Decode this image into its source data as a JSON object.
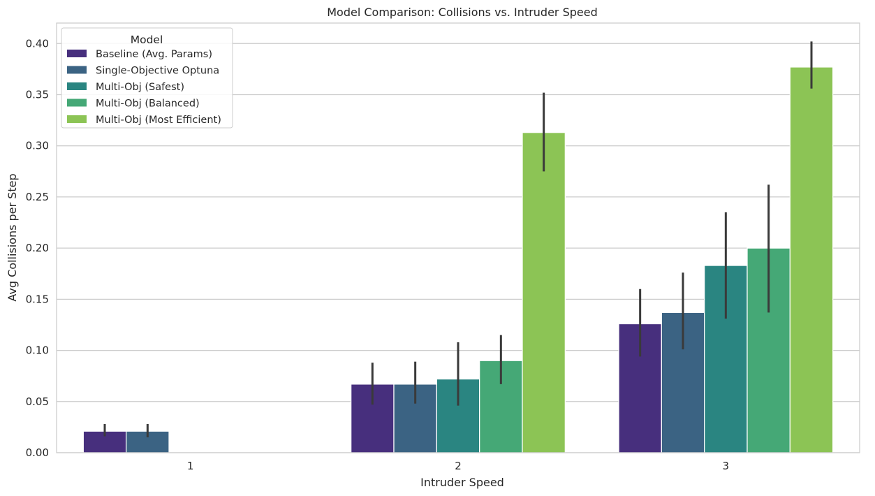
{
  "chart_data": {
    "type": "bar",
    "title": "Model Comparison: Collisions vs. Intruder Speed",
    "xlabel": "Intruder Speed",
    "ylabel": "Avg Collisions per Step",
    "categories": [
      "1",
      "2",
      "3"
    ],
    "ylim": [
      0,
      0.42
    ],
    "yticks": [
      0.0,
      0.05,
      0.1,
      0.15,
      0.2,
      0.25,
      0.3,
      0.35,
      0.4
    ],
    "ytick_labels": [
      "0.00",
      "0.05",
      "0.10",
      "0.15",
      "0.20",
      "0.25",
      "0.30",
      "0.35",
      "0.40"
    ],
    "grid": true,
    "legend": {
      "title": "Model",
      "placement": "top-left"
    },
    "series": [
      {
        "name": "Baseline (Avg. Params)",
        "color": "#472f7d",
        "values": [
          0.021,
          0.067,
          0.126
        ],
        "ci_low": [
          0.016,
          0.047,
          0.094
        ],
        "ci_high": [
          0.028,
          0.088,
          0.16
        ]
      },
      {
        "name": "Single-Objective Optuna",
        "color": "#3b6383",
        "values": [
          0.021,
          0.067,
          0.137
        ],
        "ci_low": [
          0.015,
          0.048,
          0.101
        ],
        "ci_high": [
          0.028,
          0.089,
          0.176
        ]
      },
      {
        "name": "Multi-Obj (Safest)",
        "color": "#2a8581",
        "values": [
          null,
          0.072,
          0.183
        ],
        "ci_low": [
          null,
          0.046,
          0.131
        ],
        "ci_high": [
          null,
          0.108,
          0.235
        ]
      },
      {
        "name": "Multi-Obj (Balanced)",
        "color": "#45a876",
        "values": [
          null,
          0.09,
          0.2
        ],
        "ci_low": [
          null,
          0.067,
          0.137
        ],
        "ci_high": [
          null,
          0.115,
          0.262
        ]
      },
      {
        "name": "Multi-Obj (Most Efficient)",
        "color": "#8cc455",
        "values": [
          null,
          0.313,
          0.377
        ],
        "ci_low": [
          null,
          0.275,
          0.356
        ],
        "ci_high": [
          null,
          0.352,
          0.402
        ]
      }
    ]
  }
}
